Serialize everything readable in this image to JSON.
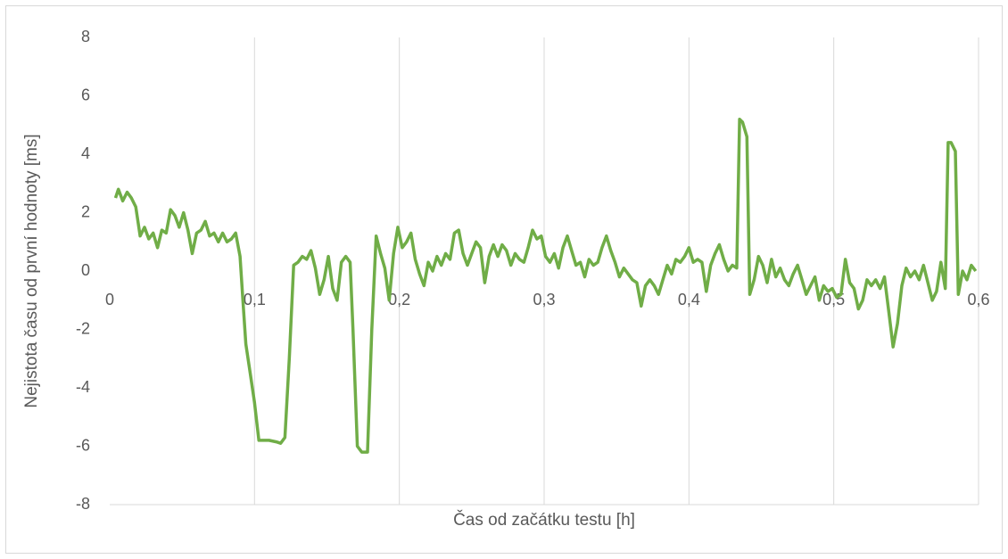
{
  "chart_data": {
    "type": "line",
    "xlabel": "Čas od začátku testu [h]",
    "ylabel": "Nejistota času od první hodnoty [ms]",
    "color": "#70ad47",
    "xlim": [
      0,
      0.6
    ],
    "ylim": [
      -8,
      8
    ],
    "xticks": [
      0,
      {
        "value": 0.1,
        "label": "0,1"
      },
      {
        "value": 0.2,
        "label": "0,2"
      },
      {
        "value": 0.3,
        "label": "0,3"
      },
      {
        "value": 0.4,
        "label": "0,4"
      },
      {
        "value": 0.5,
        "label": "0,5"
      },
      {
        "value": 0.6,
        "label": "0,6"
      }
    ],
    "yticks": [
      8,
      6,
      4,
      2,
      0,
      -2,
      -4,
      -6,
      -8
    ],
    "xgrid": true,
    "x": [
      0.004,
      0.006,
      0.009,
      0.012,
      0.015,
      0.018,
      0.021,
      0.024,
      0.027,
      0.03,
      0.033,
      0.036,
      0.039,
      0.042,
      0.045,
      0.048,
      0.051,
      0.054,
      0.057,
      0.06,
      0.063,
      0.066,
      0.069,
      0.072,
      0.075,
      0.078,
      0.081,
      0.084,
      0.087,
      0.09,
      0.092,
      0.094,
      0.097,
      0.1,
      0.103,
      0.106,
      0.11,
      0.115,
      0.118,
      0.121,
      0.124,
      0.127,
      0.13,
      0.133,
      0.136,
      0.139,
      0.142,
      0.145,
      0.148,
      0.151,
      0.154,
      0.157,
      0.16,
      0.163,
      0.166,
      0.168,
      0.171,
      0.174,
      0.178,
      0.181,
      0.184,
      0.187,
      0.19,
      0.193,
      0.196,
      0.199,
      0.202,
      0.205,
      0.208,
      0.211,
      0.214,
      0.217,
      0.22,
      0.223,
      0.226,
      0.229,
      0.232,
      0.235,
      0.238,
      0.241,
      0.244,
      0.247,
      0.25,
      0.253,
      0.256,
      0.259,
      0.262,
      0.265,
      0.268,
      0.271,
      0.274,
      0.277,
      0.28,
      0.283,
      0.286,
      0.289,
      0.292,
      0.295,
      0.298,
      0.301,
      0.304,
      0.307,
      0.31,
      0.313,
      0.316,
      0.319,
      0.322,
      0.325,
      0.328,
      0.331,
      0.334,
      0.337,
      0.34,
      0.343,
      0.346,
      0.349,
      0.352,
      0.355,
      0.358,
      0.361,
      0.364,
      0.367,
      0.37,
      0.373,
      0.376,
      0.379,
      0.382,
      0.385,
      0.388,
      0.391,
      0.394,
      0.397,
      0.4,
      0.403,
      0.406,
      0.409,
      0.412,
      0.415,
      0.418,
      0.421,
      0.424,
      0.427,
      0.43,
      0.433,
      0.435,
      0.437,
      0.44,
      0.442,
      0.445,
      0.448,
      0.451,
      0.454,
      0.457,
      0.46,
      0.463,
      0.466,
      0.469,
      0.472,
      0.475,
      0.478,
      0.481,
      0.484,
      0.487,
      0.49,
      0.493,
      0.496,
      0.499,
      0.502,
      0.505,
      0.508,
      0.511,
      0.514,
      0.517,
      0.52,
      0.523,
      0.526,
      0.529,
      0.532,
      0.535,
      0.538,
      0.541,
      0.544,
      0.547,
      0.55,
      0.553,
      0.556,
      0.559,
      0.562,
      0.565,
      0.568,
      0.571,
      0.574,
      0.577,
      0.579,
      0.581,
      0.584,
      0.586,
      0.589,
      0.592,
      0.595,
      0.598
    ],
    "values": [
      2.5,
      2.8,
      2.4,
      2.7,
      2.5,
      2.2,
      1.2,
      1.5,
      1.1,
      1.3,
      0.8,
      1.4,
      1.3,
      2.1,
      1.9,
      1.5,
      2.0,
      1.4,
      0.6,
      1.3,
      1.4,
      1.7,
      1.2,
      1.3,
      1.0,
      1.3,
      1.0,
      1.1,
      1.3,
      0.5,
      -1.0,
      -2.5,
      -3.5,
      -4.5,
      -5.8,
      -5.8,
      -5.8,
      -5.85,
      -5.9,
      -5.7,
      -3.0,
      0.2,
      0.3,
      0.5,
      0.4,
      0.7,
      0.1,
      -0.8,
      -0.3,
      0.5,
      -0.6,
      -1.0,
      0.3,
      0.5,
      0.3,
      -2.0,
      -6.0,
      -6.2,
      -6.2,
      -2.0,
      1.2,
      0.6,
      0.1,
      -1.0,
      0.6,
      1.5,
      0.8,
      1.0,
      1.3,
      0.4,
      -0.1,
      -0.5,
      0.3,
      0.0,
      0.5,
      0.2,
      0.6,
      0.4,
      1.3,
      1.4,
      0.6,
      0.2,
      0.6,
      1.0,
      0.8,
      -0.4,
      0.5,
      0.9,
      0.5,
      0.9,
      0.7,
      0.2,
      0.6,
      0.4,
      0.3,
      0.8,
      1.4,
      1.1,
      1.2,
      0.5,
      0.3,
      0.6,
      0.1,
      0.8,
      1.2,
      0.7,
      0.2,
      0.3,
      -0.2,
      0.4,
      0.2,
      0.3,
      0.8,
      1.2,
      0.7,
      0.3,
      -0.2,
      0.1,
      -0.1,
      -0.3,
      -0.4,
      -1.2,
      -0.5,
      -0.3,
      -0.5,
      -0.8,
      -0.3,
      0.2,
      -0.1,
      0.4,
      0.3,
      0.5,
      0.8,
      0.3,
      0.4,
      0.3,
      -0.7,
      0.2,
      0.6,
      0.9,
      0.4,
      0.0,
      0.2,
      0.1,
      5.2,
      5.1,
      4.6,
      -0.8,
      -0.3,
      0.5,
      0.2,
      -0.4,
      0.4,
      -0.2,
      0.1,
      -0.3,
      -0.5,
      -0.1,
      0.2,
      -0.3,
      -0.8,
      -0.5,
      -0.2,
      -1.0,
      -0.5,
      -0.7,
      -0.6,
      -0.9,
      -0.8,
      0.4,
      -0.4,
      -0.6,
      -1.3,
      -1.0,
      -0.3,
      -0.5,
      -0.3,
      -0.6,
      -0.2,
      -1.4,
      -2.6,
      -1.8,
      -0.5,
      0.1,
      -0.2,
      0.0,
      -0.3,
      0.2,
      -0.4,
      -1.0,
      -0.7,
      0.3,
      -0.6,
      4.4,
      4.4,
      4.1,
      -0.8,
      0.0,
      -0.3,
      0.2,
      0.0
    ]
  }
}
